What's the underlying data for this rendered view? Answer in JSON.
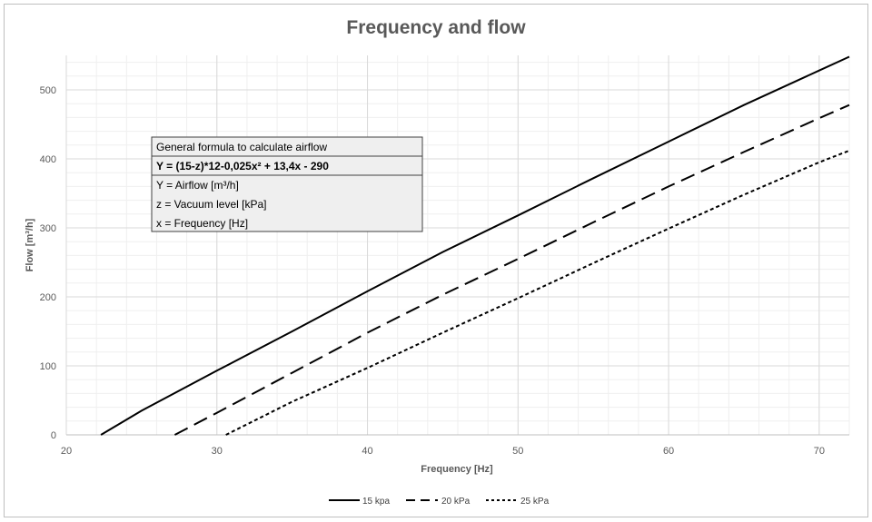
{
  "chart_data": {
    "type": "line",
    "title": "Frequency and flow",
    "xlabel": "Frequency [Hz]",
    "ylabel": "Flow [m³/h]",
    "xlim": [
      20,
      72
    ],
    "ylim": [
      0,
      550
    ],
    "xticks": [
      20,
      30,
      40,
      50,
      60,
      70
    ],
    "yticks": [
      0,
      100,
      200,
      300,
      400,
      500
    ],
    "grid": true,
    "legend_position": "bottom",
    "series": [
      {
        "name": "15 kpa",
        "style": "solid",
        "x": [
          22.3,
          25,
          30,
          35,
          40,
          45,
          50,
          55,
          60,
          65,
          70,
          72
        ],
        "y": [
          0,
          35,
          93,
          150,
          208,
          265,
          318,
          372,
          425,
          478,
          528,
          548
        ]
      },
      {
        "name": "20 kPa",
        "style": "dashed",
        "x": [
          27.2,
          30,
          35,
          40,
          45,
          50,
          55,
          60,
          65,
          70,
          72
        ],
        "y": [
          0,
          32,
          90,
          148,
          203,
          255,
          308,
          360,
          410,
          459,
          478
        ]
      },
      {
        "name": "25 kPa",
        "style": "dotted",
        "x": [
          30.6,
          35,
          40,
          45,
          50,
          55,
          60,
          65,
          70,
          72
        ],
        "y": [
          0,
          48,
          97,
          148,
          198,
          249,
          299,
          348,
          395,
          412
        ]
      }
    ],
    "colors": {
      "line": "#000000",
      "grid_major": "#d9d9d9",
      "grid_minor": "#efefef",
      "text": "#595959"
    }
  },
  "formula_box": {
    "header": "General formula to calculate airflow",
    "formula": "Y = (15-z)*12-0,025x² + 13,4x - 290",
    "lines": [
      "Y = Airflow [m³/h]",
      "z = Vacuum level [kPa]",
      "x = Frequency [Hz]"
    ]
  }
}
